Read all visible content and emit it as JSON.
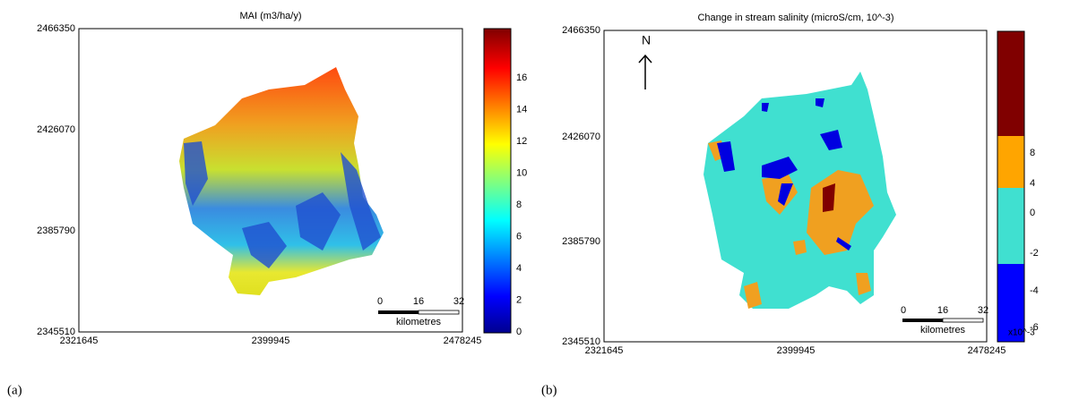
{
  "panels": [
    {
      "title": "MAI (m3/ha/y)",
      "yticks": [
        "2466350",
        "2426070",
        "2385790",
        "2345510"
      ],
      "xticks": [
        "2321645",
        "2399945",
        "2478245"
      ],
      "colorbar_ticks": [
        "16",
        "14",
        "12",
        "10",
        "8",
        "6",
        "4",
        "2",
        "0"
      ],
      "scale_bar": {
        "ticks": [
          "0",
          "16",
          "32"
        ],
        "unit": "kilometres"
      },
      "caption": "(a)"
    },
    {
      "title": "Change in stream salinity (microS/cm, 10^-3)",
      "north": "N",
      "yticks": [
        "2466350",
        "2426070",
        "2385790",
        "2345510"
      ],
      "xticks": [
        "2321645",
        "2399945",
        "2478245"
      ],
      "colorbar_ticks": [
        "8",
        "4",
        "0",
        "-2",
        "-4",
        "-6"
      ],
      "colorbar_exponent": "x10^-3",
      "scale_bar": {
        "ticks": [
          "0",
          "16",
          "32"
        ],
        "unit": "kilometres"
      },
      "caption": "(b)"
    }
  ]
}
